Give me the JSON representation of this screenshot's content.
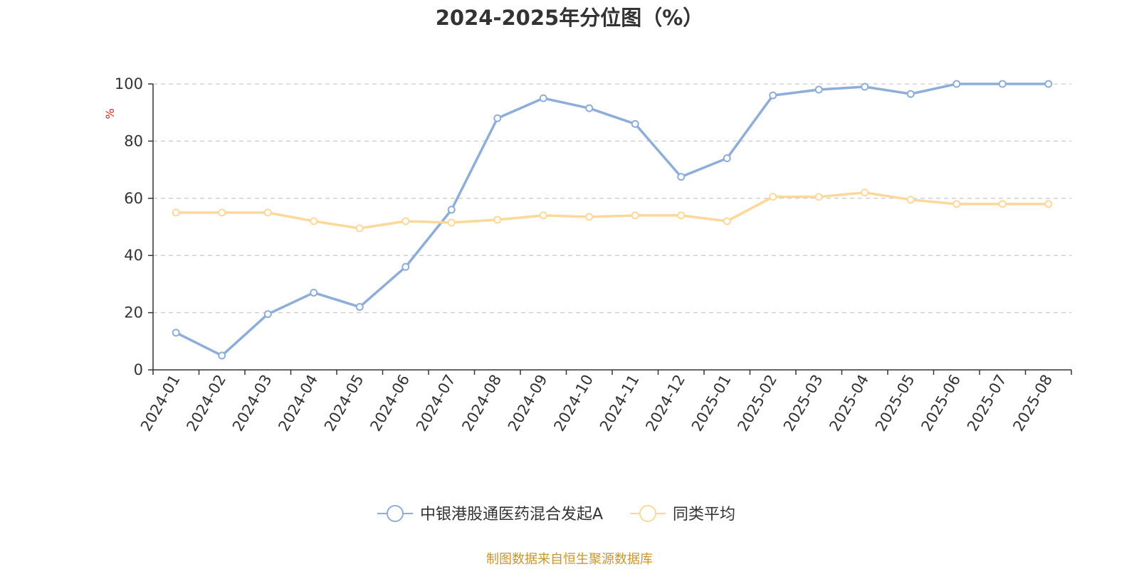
{
  "chart_data": {
    "type": "line",
    "title": "2024-2025年分位图（%）",
    "ylabel": "%",
    "xlabel": "",
    "ylim": [
      0,
      100
    ],
    "yticks": [
      0,
      20,
      40,
      60,
      80,
      100
    ],
    "categories": [
      "2024-01",
      "2024-02",
      "2024-03",
      "2024-04",
      "2024-05",
      "2024-06",
      "2024-07",
      "2024-08",
      "2024-09",
      "2024-10",
      "2024-11",
      "2024-12",
      "2025-01",
      "2025-02",
      "2025-03",
      "2025-04",
      "2025-05",
      "2025-06",
      "2025-07",
      "2025-08"
    ],
    "series": [
      {
        "name": "中银港股通医药混合发起A",
        "color": "#8eadd9",
        "values": [
          13,
          5,
          19.5,
          27,
          22,
          36,
          56,
          88,
          95,
          91.5,
          86,
          67.5,
          74,
          96,
          98,
          99,
          96.5,
          100,
          100,
          100
        ]
      },
      {
        "name": "同类平均",
        "color": "#fdd89a",
        "values": [
          55,
          55,
          55,
          52,
          49.5,
          52,
          51.5,
          52.5,
          54,
          53.5,
          54,
          54,
          52,
          60.5,
          60.5,
          62,
          59.5,
          58,
          58,
          58
        ]
      }
    ],
    "grid": true,
    "legend_position": "bottom-center"
  },
  "source": {
    "text": "制图数据来自恒生聚源数据库",
    "color": "#c8962e"
  },
  "unit_color": "#e02020"
}
